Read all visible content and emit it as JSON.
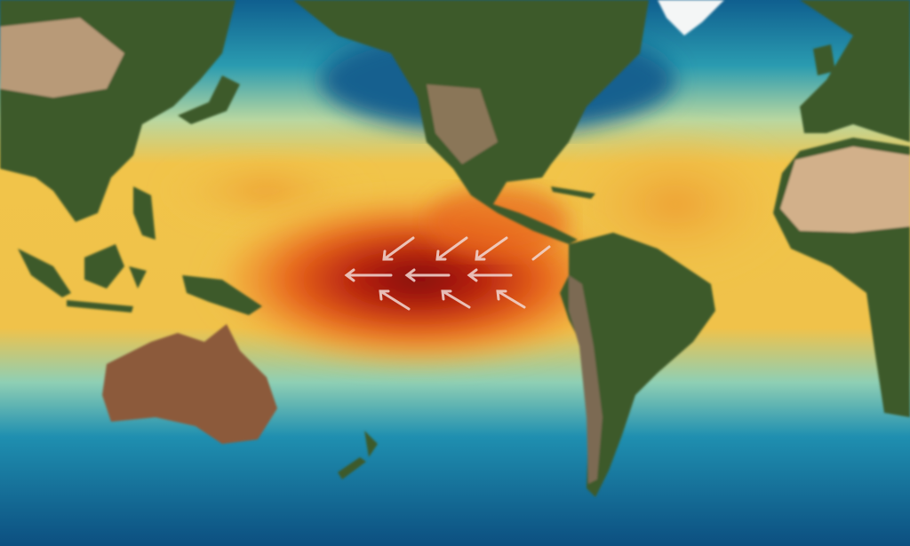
{
  "map": {
    "subject": "sea-surface-temperature",
    "colors": {
      "cold_ocean": "#0f5f8f",
      "cool_ocean": "#2a9bb0",
      "warm_band": "#f1c44a",
      "hot_band": "#e8661c",
      "anomaly_core": "#8e0d0c",
      "land": "#3d5a2a",
      "desert": "#c9a57a",
      "ice": "#f4f6f6"
    },
    "arrows": {
      "icon": "arrow-left-icon",
      "direction": "westward"
    }
  }
}
